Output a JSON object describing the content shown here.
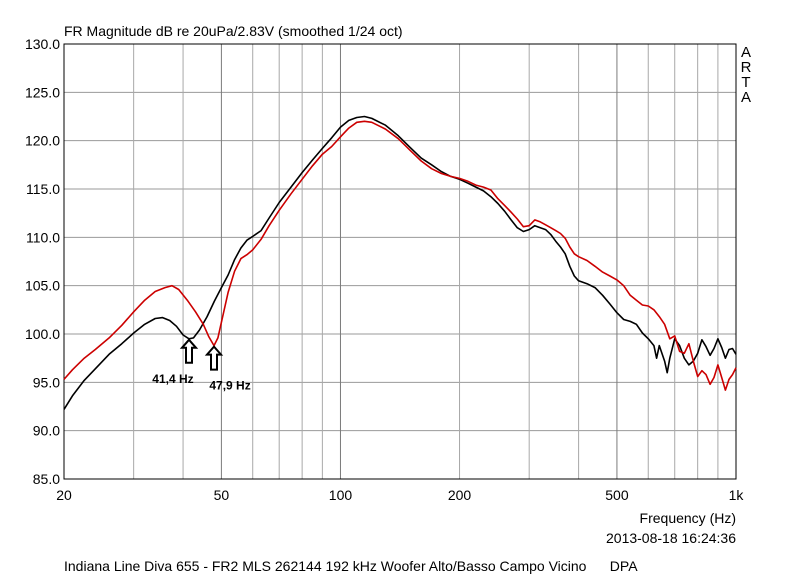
{
  "chart_data": {
    "type": "line",
    "title": "FR Magnitude dB re 20uPa/2.83V (smoothed 1/24 oct)",
    "xlabel": "Frequency (Hz)",
    "ylabel": "",
    "x_scale": "log",
    "xlim": [
      20,
      1000
    ],
    "ylim": [
      85,
      130
    ],
    "x_ticks": [
      {
        "value": 20,
        "label": "20"
      },
      {
        "value": 50,
        "label": "50"
      },
      {
        "value": 100,
        "label": "100"
      },
      {
        "value": 200,
        "label": "200"
      },
      {
        "value": 500,
        "label": "500"
      },
      {
        "value": 1000,
        "label": "1k"
      }
    ],
    "y_ticks": [
      "85.0",
      "90.0",
      "95.0",
      "100.0",
      "105.0",
      "110.0",
      "115.0",
      "120.0",
      "125.0",
      "130.0"
    ],
    "grid": true,
    "brand": "ARTA",
    "timestamp": "2013-08-18  16:24:36",
    "footer": "Indiana Line Diva 655 - FR2 MLS 262144 192 kHz Woofer Alto/Basso Campo Vicino      DPA",
    "annotations": [
      {
        "text": "41,4 Hz",
        "x": 41.4,
        "y": 99.5,
        "color": "#000000"
      },
      {
        "text": "47,9 Hz",
        "x": 47.9,
        "y": 98.8,
        "color": "#cc0000"
      }
    ],
    "series": [
      {
        "color": "#000000",
        "points": [
          [
            20,
            92.2
          ],
          [
            21,
            93.6
          ],
          [
            22.5,
            95.2
          ],
          [
            24,
            96.4
          ],
          [
            26,
            97.9
          ],
          [
            28,
            99.0
          ],
          [
            30,
            100.1
          ],
          [
            32,
            101.0
          ],
          [
            34,
            101.6
          ],
          [
            35.5,
            101.7
          ],
          [
            37,
            101.4
          ],
          [
            38.5,
            100.8
          ],
          [
            40,
            99.9
          ],
          [
            41.4,
            99.5
          ],
          [
            42.5,
            99.6
          ],
          [
            44,
            100.4
          ],
          [
            46,
            101.8
          ],
          [
            48,
            103.4
          ],
          [
            50,
            104.8
          ],
          [
            52,
            106.1
          ],
          [
            54,
            107.7
          ],
          [
            56,
            108.9
          ],
          [
            58,
            109.7
          ],
          [
            60,
            110.1
          ],
          [
            63,
            110.7
          ],
          [
            66,
            112.0
          ],
          [
            70,
            113.6
          ],
          [
            75,
            115.2
          ],
          [
            80,
            116.7
          ],
          [
            85,
            118.0
          ],
          [
            90,
            119.2
          ],
          [
            95,
            120.3
          ],
          [
            100,
            121.4
          ],
          [
            105,
            122.1
          ],
          [
            110,
            122.4
          ],
          [
            115,
            122.5
          ],
          [
            120,
            122.3
          ],
          [
            130,
            121.6
          ],
          [
            140,
            120.5
          ],
          [
            150,
            119.3
          ],
          [
            160,
            118.2
          ],
          [
            170,
            117.5
          ],
          [
            180,
            116.8
          ],
          [
            190,
            116.3
          ],
          [
            200,
            116.0
          ],
          [
            210,
            115.6
          ],
          [
            220,
            115.2
          ],
          [
            230,
            114.8
          ],
          [
            240,
            114.2
          ],
          [
            250,
            113.5
          ],
          [
            260,
            112.7
          ],
          [
            270,
            111.8
          ],
          [
            280,
            111.0
          ],
          [
            290,
            110.6
          ],
          [
            300,
            110.8
          ],
          [
            310,
            111.2
          ],
          [
            320,
            111.0
          ],
          [
            330,
            110.8
          ],
          [
            340,
            110.3
          ],
          [
            350,
            109.6
          ],
          [
            360,
            109.0
          ],
          [
            370,
            108.3
          ],
          [
            380,
            107.0
          ],
          [
            390,
            106.0
          ],
          [
            400,
            105.5
          ],
          [
            420,
            105.2
          ],
          [
            440,
            104.8
          ],
          [
            460,
            104.0
          ],
          [
            480,
            103.1
          ],
          [
            500,
            102.2
          ],
          [
            520,
            101.5
          ],
          [
            540,
            101.3
          ],
          [
            560,
            101.0
          ],
          [
            580,
            100.1
          ],
          [
            600,
            99.5
          ],
          [
            620,
            98.8
          ],
          [
            630,
            97.5
          ],
          [
            640,
            98.8
          ],
          [
            660,
            97.2
          ],
          [
            670,
            96.0
          ],
          [
            680,
            97.5
          ],
          [
            700,
            99.5
          ],
          [
            720,
            98.8
          ],
          [
            740,
            97.5
          ],
          [
            760,
            96.8
          ],
          [
            780,
            97.2
          ],
          [
            800,
            98.0
          ],
          [
            820,
            99.4
          ],
          [
            840,
            98.7
          ],
          [
            860,
            97.8
          ],
          [
            880,
            98.5
          ],
          [
            900,
            99.5
          ],
          [
            920,
            98.6
          ],
          [
            940,
            97.5
          ],
          [
            960,
            98.4
          ],
          [
            980,
            98.5
          ],
          [
            1000,
            97.9
          ]
        ]
      },
      {
        "color": "#cc0000",
        "points": [
          [
            20,
            95.3
          ],
          [
            21,
            96.3
          ],
          [
            22.5,
            97.5
          ],
          [
            24,
            98.4
          ],
          [
            26,
            99.6
          ],
          [
            28,
            100.9
          ],
          [
            30,
            102.3
          ],
          [
            32,
            103.5
          ],
          [
            34,
            104.4
          ],
          [
            36,
            104.8
          ],
          [
            37.5,
            105.0
          ],
          [
            39,
            104.6
          ],
          [
            41,
            103.5
          ],
          [
            43,
            102.3
          ],
          [
            45,
            101.0
          ],
          [
            46.5,
            99.7
          ],
          [
            47.9,
            98.8
          ],
          [
            49,
            99.6
          ],
          [
            50.5,
            102.0
          ],
          [
            52,
            104.3
          ],
          [
            54,
            106.5
          ],
          [
            56,
            107.8
          ],
          [
            58,
            108.2
          ],
          [
            60,
            108.7
          ],
          [
            63,
            109.8
          ],
          [
            66,
            111.2
          ],
          [
            70,
            112.8
          ],
          [
            75,
            114.5
          ],
          [
            80,
            116.0
          ],
          [
            85,
            117.4
          ],
          [
            90,
            118.6
          ],
          [
            95,
            119.4
          ],
          [
            100,
            120.4
          ],
          [
            105,
            121.3
          ],
          [
            110,
            121.9
          ],
          [
            115,
            122.0
          ],
          [
            120,
            121.9
          ],
          [
            130,
            121.2
          ],
          [
            140,
            120.2
          ],
          [
            150,
            119.0
          ],
          [
            160,
            117.9
          ],
          [
            170,
            117.1
          ],
          [
            180,
            116.6
          ],
          [
            190,
            116.3
          ],
          [
            200,
            116.1
          ],
          [
            210,
            115.8
          ],
          [
            220,
            115.4
          ],
          [
            230,
            115.2
          ],
          [
            240,
            114.9
          ],
          [
            250,
            114.0
          ],
          [
            260,
            113.3
          ],
          [
            270,
            112.6
          ],
          [
            280,
            111.9
          ],
          [
            290,
            111.1
          ],
          [
            300,
            111.2
          ],
          [
            310,
            111.8
          ],
          [
            320,
            111.6
          ],
          [
            330,
            111.3
          ],
          [
            340,
            111.0
          ],
          [
            350,
            110.7
          ],
          [
            360,
            110.4
          ],
          [
            370,
            109.9
          ],
          [
            380,
            109.0
          ],
          [
            390,
            108.3
          ],
          [
            400,
            108.0
          ],
          [
            420,
            107.6
          ],
          [
            440,
            107.0
          ],
          [
            460,
            106.4
          ],
          [
            480,
            106.0
          ],
          [
            500,
            105.6
          ],
          [
            520,
            105.0
          ],
          [
            540,
            104.0
          ],
          [
            560,
            103.5
          ],
          [
            580,
            103.0
          ],
          [
            600,
            102.9
          ],
          [
            620,
            102.5
          ],
          [
            640,
            101.8
          ],
          [
            660,
            101.0
          ],
          [
            680,
            99.5
          ],
          [
            700,
            99.8
          ],
          [
            720,
            98.2
          ],
          [
            740,
            98.0
          ],
          [
            760,
            99.0
          ],
          [
            780,
            97.2
          ],
          [
            800,
            95.6
          ],
          [
            820,
            96.2
          ],
          [
            840,
            95.8
          ],
          [
            860,
            94.8
          ],
          [
            880,
            95.5
          ],
          [
            900,
            96.8
          ],
          [
            920,
            95.5
          ],
          [
            940,
            94.2
          ],
          [
            960,
            95.3
          ],
          [
            980,
            95.8
          ],
          [
            1000,
            96.5
          ]
        ]
      }
    ]
  }
}
